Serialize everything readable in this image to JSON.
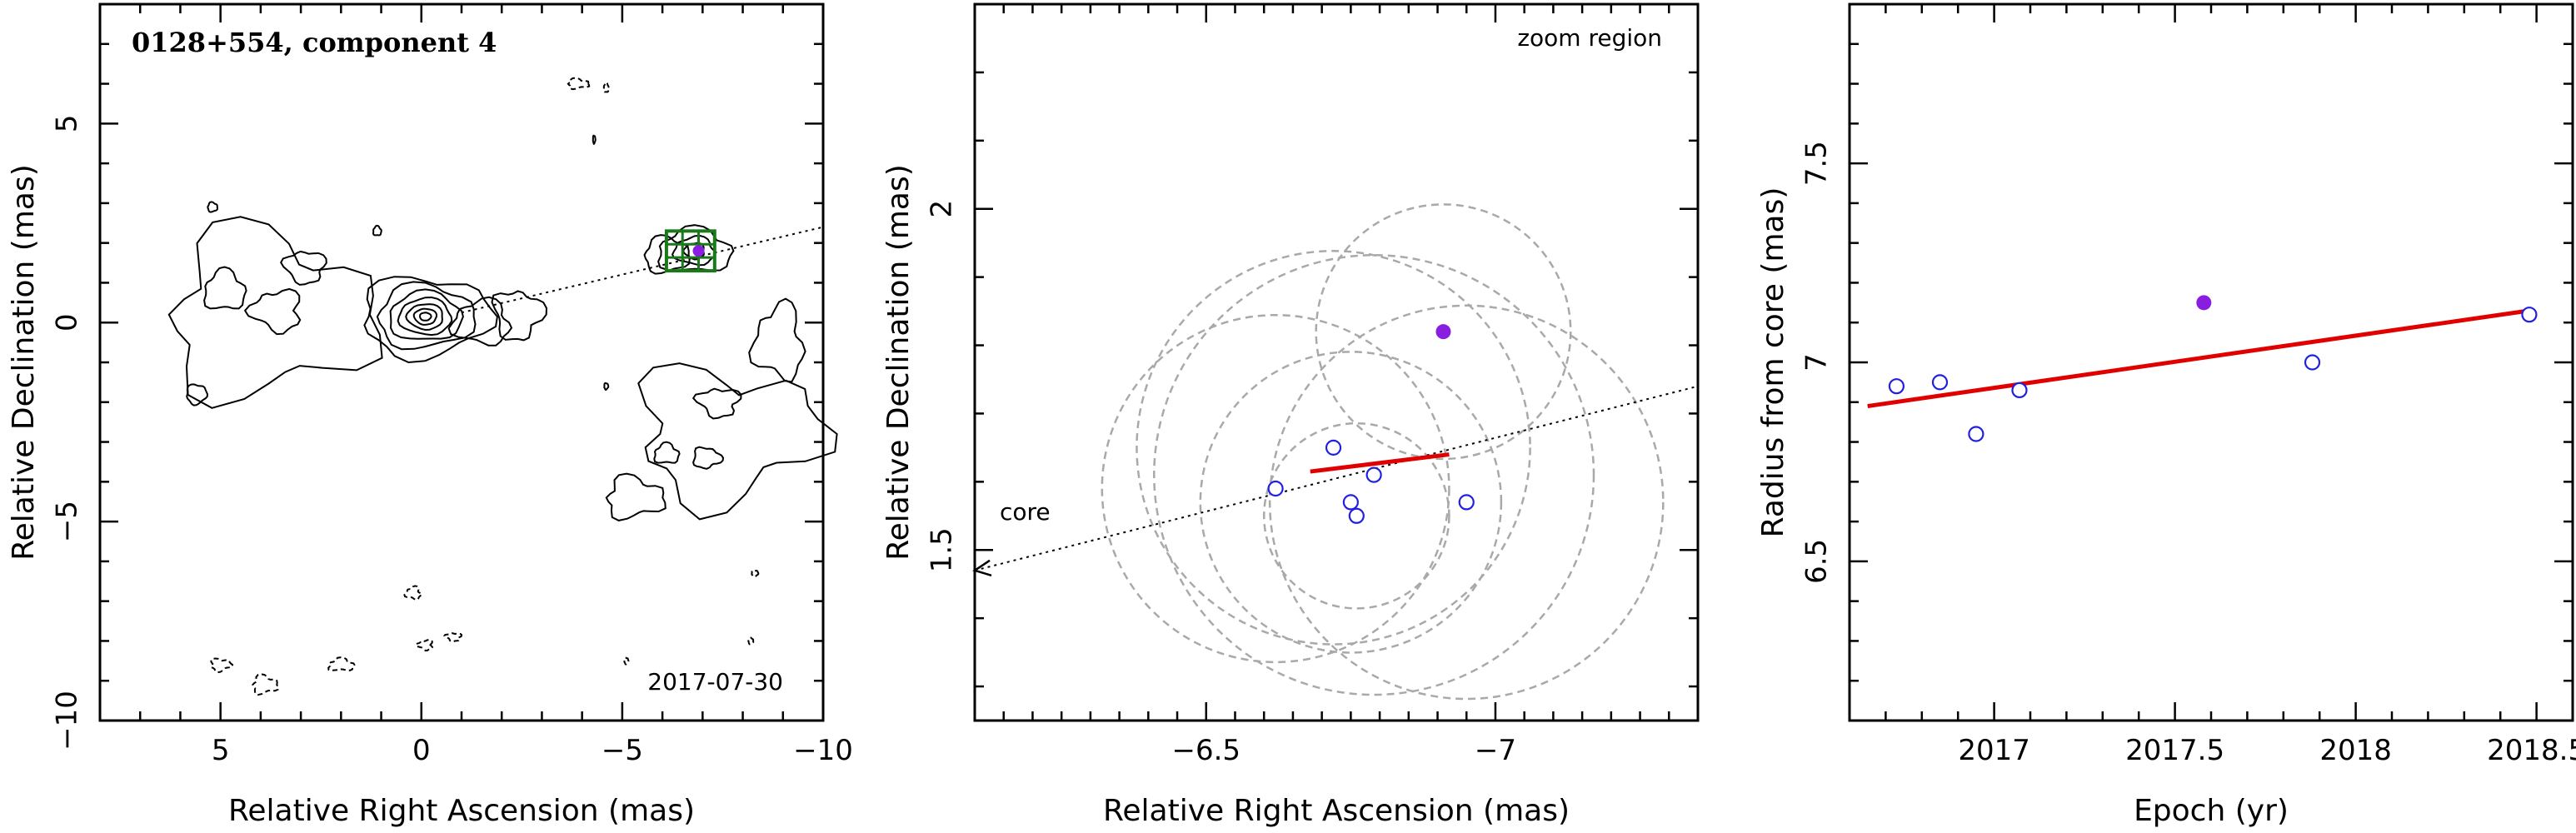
{
  "chart_data": [
    {
      "type": "contour",
      "title": "0128+554, component 4",
      "annotation": "2017-07-30",
      "xlabel": "Relative Right Ascension (mas)",
      "ylabel": "Relative Declination (mas)",
      "xlim": [
        8,
        -10
      ],
      "ylim": [
        -10,
        8
      ],
      "xticks": [
        5,
        0,
        -5,
        -10
      ],
      "yticks": [
        -10,
        -5,
        0,
        5
      ],
      "core": [
        0,
        0
      ],
      "component_position": [
        -6.9,
        1.8
      ],
      "jet_direction_line": {
        "from": [
          -1,
          0.25
        ],
        "to": [
          -10,
          2.4
        ]
      },
      "zoom_box": {
        "x": [
          -6.1,
          -7.3
        ],
        "y": [
          1.3,
          2.3
        ]
      },
      "colors": {
        "contour": "#000000",
        "zoom_box": "#1a7a1a",
        "marker": "#8a1ee0"
      }
    },
    {
      "type": "scatter",
      "title": "",
      "annotation": "zoom region",
      "core_label": "core",
      "xlabel": "Relative Right Ascension (mas)",
      "ylabel": "Relative Declination (mas)",
      "xlim": [
        -6.1,
        -7.35
      ],
      "ylim": [
        1.25,
        2.3
      ],
      "xticks": [
        -6.5,
        -7
      ],
      "yticks": [
        1.5,
        2
      ],
      "positions": [
        {
          "x": -6.62,
          "y": 1.59
        },
        {
          "x": -6.72,
          "y": 1.65
        },
        {
          "x": -6.76,
          "y": 1.55
        },
        {
          "x": -6.75,
          "y": 1.57
        },
        {
          "x": -6.79,
          "y": 1.61
        },
        {
          "x": -6.95,
          "y": 1.57
        }
      ],
      "highlight_position": {
        "x": -6.91,
        "y": 1.82
      },
      "uncertainty_circles": [
        {
          "x": -6.62,
          "y": 1.59,
          "r": 0.3
        },
        {
          "x": -6.72,
          "y": 1.65,
          "r": 0.34
        },
        {
          "x": -6.76,
          "y": 1.55,
          "r": 0.16
        },
        {
          "x": -6.75,
          "y": 1.57,
          "r": 0.26
        },
        {
          "x": -6.79,
          "y": 1.61,
          "r": 0.38
        },
        {
          "x": -6.95,
          "y": 1.57,
          "r": 0.34
        },
        {
          "x": -6.91,
          "y": 1.82,
          "r": 0.22
        }
      ],
      "fit_line": [
        {
          "x": -6.68,
          "y": 1.615
        },
        {
          "x": -6.92,
          "y": 1.64
        }
      ],
      "jet_direction_line": {
        "from": [
          -6.1,
          1.47
        ],
        "to": [
          -7.35,
          1.74
        ]
      },
      "colors": {
        "points": "#2020e0",
        "highlight": "#8a1ee0",
        "fit": "#e00000",
        "circles": "#a9a9a9"
      }
    },
    {
      "type": "scatter",
      "title": "",
      "xlabel": "Epoch (yr)",
      "ylabel": "Radius from core (mas)",
      "xlim": [
        2016.6,
        2018.6
      ],
      "ylim": [
        6.1,
        7.9
      ],
      "xticks": [
        2017,
        2017.5,
        2018,
        2018.5
      ],
      "xtick_labels": [
        "2017",
        "2017.5",
        "2018",
        "2018.5"
      ],
      "yticks": [
        6.5,
        7,
        7.5
      ],
      "ytick_labels": [
        "6.5",
        "7",
        "7.5"
      ],
      "points": [
        {
          "x": 2016.73,
          "y": 6.94
        },
        {
          "x": 2016.85,
          "y": 6.95
        },
        {
          "x": 2016.95,
          "y": 6.82
        },
        {
          "x": 2017.07,
          "y": 6.93
        },
        {
          "x": 2017.88,
          "y": 7.0
        },
        {
          "x": 2018.48,
          "y": 7.12
        }
      ],
      "highlight_point": {
        "x": 2017.58,
        "y": 7.15
      },
      "fit_line": [
        {
          "x": 2016.65,
          "y": 6.89
        },
        {
          "x": 2018.48,
          "y": 7.13
        }
      ],
      "colors": {
        "points": "#2020e0",
        "highlight": "#8a1ee0",
        "fit": "#e00000"
      }
    }
  ]
}
